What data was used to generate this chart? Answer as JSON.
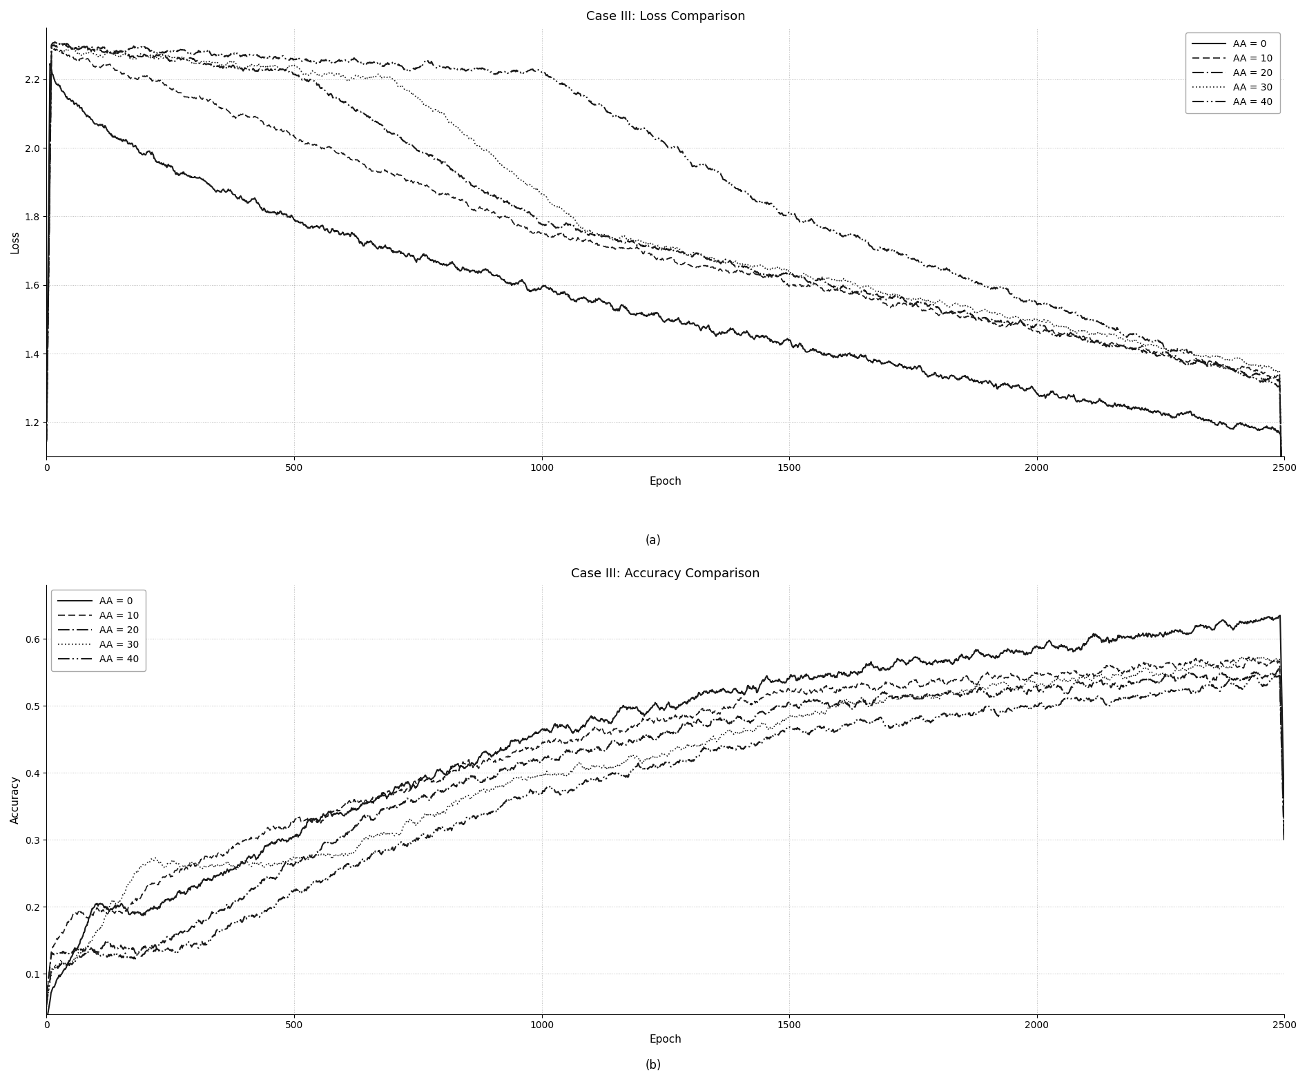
{
  "title_loss": "Case III: Loss Comparison",
  "title_acc": "Case III: Accuracy Comparison",
  "xlabel": "Epoch",
  "ylabel_loss": "Loss",
  "ylabel_acc": "Accuracy",
  "subtitle_a": "(a)",
  "subtitle_b": "(b)",
  "n_epochs": 2500,
  "loss_ylim": [
    1.1,
    2.35
  ],
  "acc_ylim": [
    0.04,
    0.68
  ],
  "loss_yticks": [
    1.2,
    1.4,
    1.6,
    1.8,
    2.0,
    2.2
  ],
  "acc_yticks": [
    0.1,
    0.2,
    0.3,
    0.4,
    0.5,
    0.6
  ],
  "xticks": [
    0,
    500,
    1000,
    1500,
    2000,
    2500
  ],
  "legend_labels": [
    "AA = 0",
    "AA = 10",
    "AA = 20",
    "AA = 30",
    "AA = 40"
  ],
  "color": "#1a1a1a",
  "background_color": "#ffffff",
  "grid_color": "#aaaaaa",
  "grid_linestyle": ":",
  "grid_alpha": 0.8,
  "title_fontsize": 13,
  "label_fontsize": 11,
  "tick_fontsize": 10,
  "legend_fontsize": 10,
  "subtitle_fontsize": 12,
  "fig_width": 18.93,
  "fig_height": 15.67,
  "dpi": 100
}
